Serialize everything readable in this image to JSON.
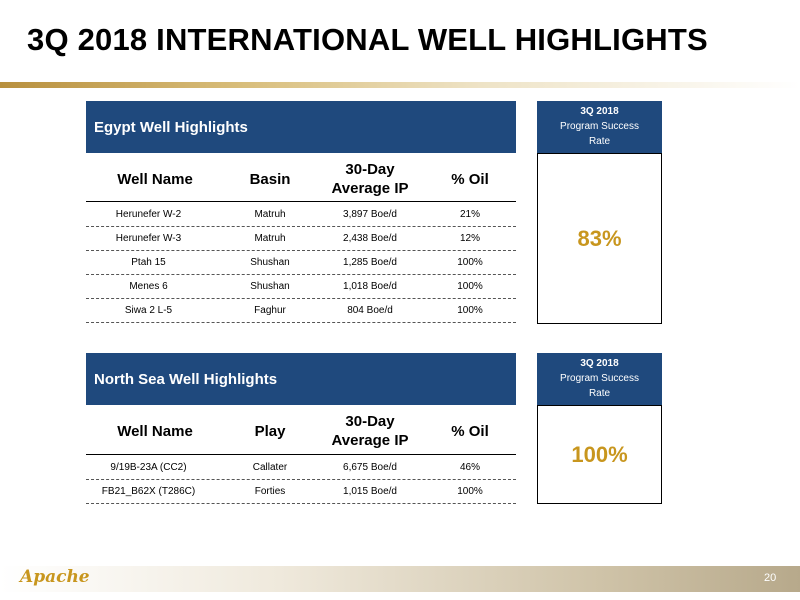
{
  "title": "3Q 2018 INTERNATIONAL WELL HIGHLIGHTS",
  "egypt": {
    "header": "Egypt Well Highlights",
    "rate_label_1": "3Q 2018",
    "rate_label_2": "Program Success",
    "rate_label_3": "Rate",
    "rate_value": "83%",
    "columns": [
      "Well Name",
      "Basin",
      "30-Day",
      "Average IP",
      "% Oil"
    ],
    "rows": [
      {
        "well": "Herunefer W-2",
        "basin": "Matruh",
        "ip": "3,897 Boe/d",
        "oil": "21%"
      },
      {
        "well": "Herunefer W-3",
        "basin": "Matruh",
        "ip": "2,438 Boe/d",
        "oil": "12%"
      },
      {
        "well": "Ptah 15",
        "basin": "Shushan",
        "ip": "1,285 Boe/d",
        "oil": "100%"
      },
      {
        "well": "Menes 6",
        "basin": "Shushan",
        "ip": "1,018 Boe/d",
        "oil": "100%"
      },
      {
        "well": "Siwa 2 L-5",
        "basin": "Faghur",
        "ip": "804 Boe/d",
        "oil": "100%"
      }
    ]
  },
  "north_sea": {
    "header": "North Sea Well Highlights",
    "rate_label_1": "3Q 2018",
    "rate_label_2": "Program Success",
    "rate_label_3": "Rate",
    "rate_value": "100%",
    "columns": [
      "Well Name",
      "Play",
      "30-Day",
      "Average IP",
      "% Oil"
    ],
    "rows": [
      {
        "well": "9/19B-23A (CC2)",
        "play": "Callater",
        "ip": "6,675 Boe/d",
        "oil": "46%"
      },
      {
        "well": "FB21_B62X (T286C)",
        "play": "Forties",
        "ip": "1,015 Boe/d",
        "oil": "100%"
      }
    ]
  },
  "footer": {
    "logo_text": "Apache",
    "page_number": "20"
  },
  "colors": {
    "header_blue": "#1f497d",
    "accent_gold": "#c8961e"
  }
}
